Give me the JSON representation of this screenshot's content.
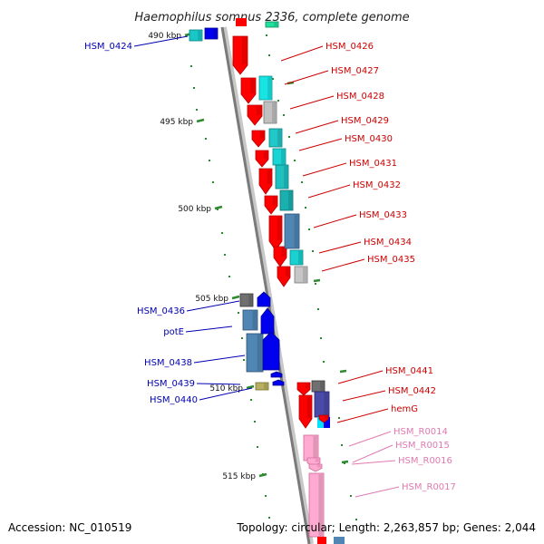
{
  "title": "Haemophilus somnus 2336, complete genome",
  "footer": {
    "accession": "Accession: NC_010519",
    "stats": "Topology: circular; Length: 2,263,857 bp; Genes: 2,044"
  },
  "colors": {
    "backbone": "#8c8c8c",
    "tick": "#2f8a2f",
    "label_red": "#cc0000",
    "label_blue": "#0000b0",
    "label_pink": "#e07ab0"
  },
  "scale": {
    "ticks": [
      {
        "label": "490 kbp"
      },
      {
        "label": "495 kbp"
      },
      {
        "label": "500 kbp"
      },
      {
        "label": "505 kbp"
      },
      {
        "label": "510 kbp"
      },
      {
        "label": "515 kbp"
      }
    ]
  },
  "genes": {
    "right": [
      {
        "name": "HSM_0426",
        "color": "red"
      },
      {
        "name": "HSM_0427",
        "color": "red"
      },
      {
        "name": "HSM_0428",
        "color": "red"
      },
      {
        "name": "HSM_0429",
        "color": "red"
      },
      {
        "name": "HSM_0430",
        "color": "red"
      },
      {
        "name": "HSM_0431",
        "color": "red"
      },
      {
        "name": "HSM_0432",
        "color": "red"
      },
      {
        "name": "HSM_0433",
        "color": "red"
      },
      {
        "name": "HSM_0434",
        "color": "red"
      },
      {
        "name": "HSM_0435",
        "color": "red"
      },
      {
        "name": "HSM_0441",
        "color": "red"
      },
      {
        "name": "HSM_0442",
        "color": "red"
      },
      {
        "name": "hemG",
        "color": "red"
      },
      {
        "name": "HSM_R0014",
        "color": "pink"
      },
      {
        "name": "HSM_R0015",
        "color": "pink"
      },
      {
        "name": "HSM_R0016",
        "color": "pink"
      },
      {
        "name": "HSM_R0017",
        "color": "pink"
      }
    ],
    "left": [
      {
        "name": "HSM_0424"
      },
      {
        "name": "HSM_0436"
      },
      {
        "name": "potE"
      },
      {
        "name": "HSM_0438"
      },
      {
        "name": "HSM_0439"
      },
      {
        "name": "HSM_0440"
      }
    ]
  }
}
